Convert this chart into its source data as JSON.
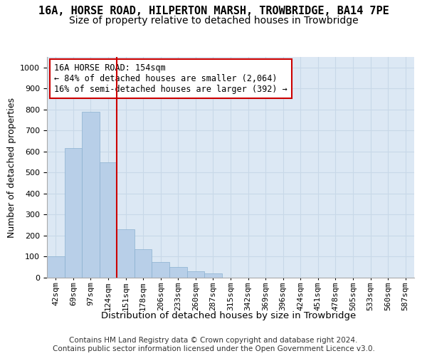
{
  "title": "16A, HORSE ROAD, HILPERTON MARSH, TROWBRIDGE, BA14 7PE",
  "subtitle": "Size of property relative to detached houses in Trowbridge",
  "xlabel": "Distribution of detached houses by size in Trowbridge",
  "ylabel": "Number of detached properties",
  "bar_values": [
    100,
    615,
    790,
    550,
    230,
    135,
    75,
    50,
    30,
    20,
    0,
    0,
    0,
    0,
    0,
    0,
    0,
    0,
    0,
    0
  ],
  "bar_labels": [
    "42sqm",
    "69sqm",
    "97sqm",
    "124sqm",
    "151sqm",
    "178sqm",
    "206sqm",
    "233sqm",
    "260sqm",
    "287sqm",
    "315sqm",
    "342sqm",
    "369sqm",
    "396sqm",
    "424sqm",
    "451sqm",
    "478sqm",
    "505sqm",
    "533sqm",
    "560sqm"
  ],
  "extra_label": "587sqm",
  "bar_color": "#b8cfe8",
  "bar_edgecolor": "#8ab0d0",
  "grid_color": "#c8d8e8",
  "background_color": "#dce8f4",
  "vline_color": "#cc0000",
  "annotation_text": "16A HORSE ROAD: 154sqm\n← 84% of detached houses are smaller (2,064)\n16% of semi-detached houses are larger (392) →",
  "annotation_box_facecolor": "#ffffff",
  "annotation_box_edgecolor": "#cc0000",
  "ylim_max": 1050,
  "yticks": [
    0,
    100,
    200,
    300,
    400,
    500,
    600,
    700,
    800,
    900,
    1000
  ],
  "footer_text": "Contains HM Land Registry data © Crown copyright and database right 2024.\nContains public sector information licensed under the Open Government Licence v3.0.",
  "title_fontsize": 11,
  "subtitle_fontsize": 10,
  "xlabel_fontsize": 9.5,
  "ylabel_fontsize": 9,
  "tick_fontsize": 8,
  "annotation_fontsize": 8.5,
  "footer_fontsize": 7.5
}
